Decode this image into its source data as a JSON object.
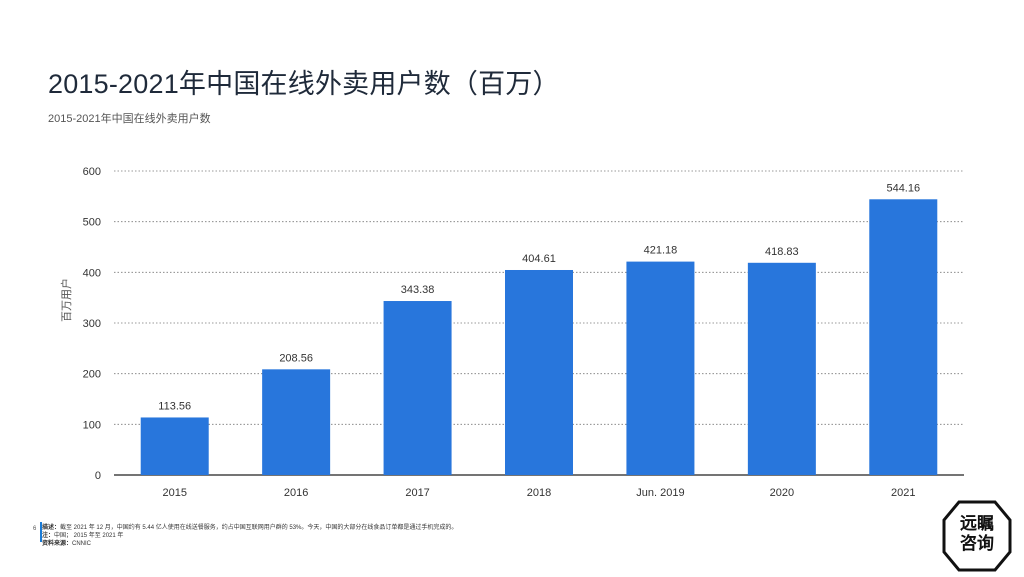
{
  "header": {
    "title": "2015-2021年中国在线外卖用户数（百万）",
    "subtitle": "2015-2021年中国在线外卖用户数"
  },
  "chart_data": {
    "type": "bar",
    "categories": [
      "2015",
      "2016",
      "2017",
      "2018",
      "Jun. 2019",
      "2020",
      "2021"
    ],
    "values": [
      113.56,
      208.56,
      343.38,
      404.61,
      421.18,
      418.83,
      544.16
    ],
    "value_labels": [
      "113.56",
      "208.56",
      "343.38",
      "404.61",
      "421.18",
      "418.83",
      "544.16"
    ],
    "title": "2015-2021年中国在线外卖用户数（百万）",
    "xlabel": "",
    "ylabel": "百万用户",
    "ylim": [
      0,
      600
    ],
    "yticks": [
      0,
      100,
      200,
      300,
      400,
      500,
      600
    ],
    "grid": true,
    "bar_color": "#2876dc"
  },
  "footer": {
    "page_number": "6",
    "description_label": "描述：",
    "description": "截至 2021 年 12 月，中国约有 5.44 亿人使用在线送餐服务，约占中国互联网用户群的 53%。今天，中国的大部分在线食品订单都是通过手机完成的。",
    "note_label": "注：",
    "note": "中国； 2015 年至 2021 年",
    "source_label": "资料来源：",
    "source": "CNNIC"
  },
  "logo": {
    "text_line1": "远瞩",
    "text_line2": "咨询"
  }
}
